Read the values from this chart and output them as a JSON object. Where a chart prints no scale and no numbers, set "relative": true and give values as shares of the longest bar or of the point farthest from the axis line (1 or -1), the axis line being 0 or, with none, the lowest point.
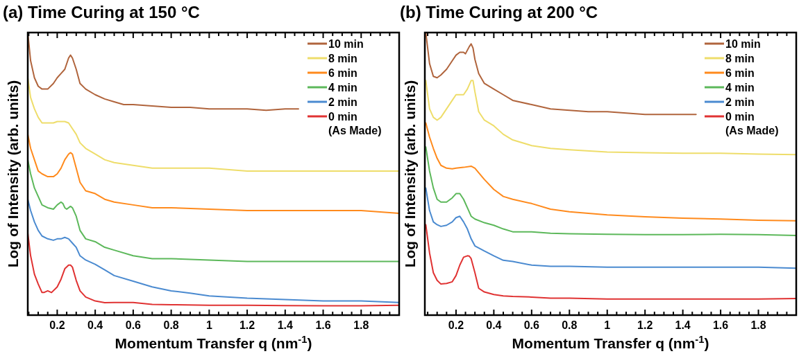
{
  "chart_data": [
    {
      "type": "line",
      "title": "(a)  Time Curing at 150 °C",
      "xlabel": "Momentum Transfer q (nm$^{-1}$)",
      "ylabel": "Log of Intensity (arb. units)",
      "relative": true,
      "legend": "top right",
      "grid": false,
      "line_style": "solid",
      "xlim": [
        0.045,
        2.0
      ],
      "xticks": [
        {
          "value": 0.05,
          "label": null
        },
        {
          "value": 0.1,
          "label": null
        },
        {
          "value": 0.15,
          "label": null
        },
        0.2,
        {
          "value": 0.25,
          "label": null
        },
        {
          "value": 0.3,
          "label": null
        },
        {
          "value": 0.35,
          "label": null
        },
        0.4,
        {
          "value": 0.45,
          "label": null
        },
        {
          "value": 0.5,
          "label": null
        },
        {
          "value": 0.55,
          "label": null
        },
        0.6,
        {
          "value": 0.65,
          "label": null
        },
        {
          "value": 0.7,
          "label": null
        },
        {
          "value": 0.75,
          "label": null
        },
        0.8,
        {
          "value": 0.85,
          "label": null
        },
        {
          "value": 0.9,
          "label": null
        },
        {
          "value": 0.95,
          "label": null
        },
        1,
        {
          "value": 1.05,
          "label": null
        },
        {
          "value": 1.1,
          "label": null
        },
        {
          "value": 1.15,
          "label": null
        },
        1.2,
        {
          "value": 1.25,
          "label": null
        },
        {
          "value": 1.3,
          "label": null
        },
        {
          "value": 1.35,
          "label": null
        },
        1.4,
        {
          "value": 1.45,
          "label": null
        },
        {
          "value": 1.5,
          "label": null
        },
        {
          "value": 1.55,
          "label": null
        },
        1.6,
        {
          "value": 1.65,
          "label": null
        },
        {
          "value": 1.7,
          "label": null
        },
        {
          "value": 1.75,
          "label": null
        },
        1.8,
        {
          "value": 1.85,
          "label": null
        },
        {
          "value": 1.9,
          "label": null
        },
        {
          "value": 1.95,
          "label": null
        }
      ],
      "series": [
        {
          "name": "10 min",
          "color": "#b0643c",
          "x": [
            0.045,
            0.06,
            0.08,
            0.1,
            0.12,
            0.15,
            0.18,
            0.2,
            0.22,
            0.24,
            0.26,
            0.27,
            0.28,
            0.3,
            0.32,
            0.35,
            0.4,
            0.45,
            0.5,
            0.55,
            0.6,
            0.7,
            0.8,
            0.9,
            1.0,
            1.1,
            1.2,
            1.3,
            1.4,
            1.47
          ],
          "values": [
            1.0,
            0.9,
            0.84,
            0.81,
            0.8,
            0.8,
            0.82,
            0.84,
            0.855,
            0.87,
            0.91,
            0.92,
            0.91,
            0.87,
            0.82,
            0.8,
            0.78,
            0.765,
            0.755,
            0.745,
            0.745,
            0.74,
            0.735,
            0.735,
            0.73,
            0.73,
            0.73,
            0.725,
            0.73,
            0.73
          ]
        },
        {
          "name": "8 min",
          "color": "#eedd6a",
          "x": [
            0.045,
            0.06,
            0.08,
            0.1,
            0.12,
            0.15,
            0.18,
            0.2,
            0.22,
            0.24,
            0.26,
            0.28,
            0.3,
            0.32,
            0.35,
            0.4,
            0.45,
            0.5,
            0.6,
            0.7,
            0.8,
            1.0,
            1.2,
            1.4,
            1.6,
            1.8,
            2.0
          ],
          "values": [
            0.84,
            0.77,
            0.73,
            0.7,
            0.68,
            0.68,
            0.68,
            0.685,
            0.685,
            0.685,
            0.68,
            0.66,
            0.64,
            0.61,
            0.59,
            0.57,
            0.55,
            0.54,
            0.53,
            0.52,
            0.52,
            0.52,
            0.51,
            0.51,
            0.51,
            0.51,
            0.51
          ]
        },
        {
          "name": "6 min",
          "color": "#ff8a1c",
          "x": [
            0.045,
            0.06,
            0.08,
            0.1,
            0.12,
            0.15,
            0.18,
            0.2,
            0.22,
            0.24,
            0.26,
            0.27,
            0.28,
            0.3,
            0.32,
            0.35,
            0.4,
            0.45,
            0.5,
            0.6,
            0.7,
            0.8,
            1.0,
            1.2,
            1.4,
            1.6,
            1.8,
            2.0
          ],
          "values": [
            0.64,
            0.59,
            0.55,
            0.51,
            0.5,
            0.49,
            0.49,
            0.5,
            0.52,
            0.55,
            0.57,
            0.575,
            0.57,
            0.52,
            0.47,
            0.44,
            0.43,
            0.41,
            0.4,
            0.39,
            0.38,
            0.38,
            0.375,
            0.37,
            0.37,
            0.37,
            0.37,
            0.36
          ]
        },
        {
          "name": "4 min",
          "color": "#5cb85a",
          "x": [
            0.045,
            0.06,
            0.08,
            0.1,
            0.12,
            0.15,
            0.18,
            0.2,
            0.22,
            0.23,
            0.24,
            0.25,
            0.27,
            0.28,
            0.3,
            0.32,
            0.35,
            0.4,
            0.45,
            0.5,
            0.6,
            0.7,
            0.8,
            1.0,
            1.2,
            1.4,
            1.6,
            1.8,
            2.0
          ],
          "values": [
            0.55,
            0.5,
            0.45,
            0.42,
            0.39,
            0.38,
            0.375,
            0.39,
            0.4,
            0.395,
            0.38,
            0.375,
            0.385,
            0.38,
            0.35,
            0.3,
            0.27,
            0.26,
            0.24,
            0.23,
            0.21,
            0.2,
            0.2,
            0.195,
            0.19,
            0.19,
            0.19,
            0.19,
            0.19
          ]
        },
        {
          "name": "2 min",
          "color": "#4a8ad0",
          "x": [
            0.045,
            0.06,
            0.08,
            0.1,
            0.12,
            0.15,
            0.18,
            0.2,
            0.22,
            0.24,
            0.26,
            0.28,
            0.3,
            0.32,
            0.35,
            0.4,
            0.45,
            0.5,
            0.6,
            0.7,
            0.8,
            0.9,
            1.0,
            1.2,
            1.4,
            1.6,
            1.8,
            2.0
          ],
          "values": [
            0.41,
            0.37,
            0.33,
            0.3,
            0.28,
            0.27,
            0.265,
            0.27,
            0.27,
            0.275,
            0.27,
            0.255,
            0.24,
            0.21,
            0.195,
            0.18,
            0.16,
            0.14,
            0.12,
            0.1,
            0.086,
            0.078,
            0.068,
            0.06,
            0.055,
            0.05,
            0.05,
            0.045
          ]
        },
        {
          "name": "0 min (As Made)",
          "color": "#e03232",
          "x": [
            0.045,
            0.06,
            0.08,
            0.1,
            0.12,
            0.13,
            0.15,
            0.17,
            0.2,
            0.22,
            0.24,
            0.26,
            0.27,
            0.28,
            0.3,
            0.32,
            0.35,
            0.4,
            0.45,
            0.5,
            0.6,
            0.7,
            0.8,
            1.0,
            1.2,
            1.4,
            1.6,
            1.8,
            2.0
          ],
          "values": [
            0.29,
            0.21,
            0.145,
            0.11,
            0.08,
            0.08,
            0.086,
            0.08,
            0.1,
            0.127,
            0.164,
            0.177,
            0.177,
            0.17,
            0.123,
            0.086,
            0.064,
            0.05,
            0.044,
            0.045,
            0.045,
            0.038,
            0.037,
            0.035,
            0.035,
            0.034,
            0.033,
            0.033,
            0.035
          ]
        }
      ]
    },
    {
      "type": "line",
      "title": "(b)  Time Curing at 200 °C",
      "xlabel": "Momentum Transfer q (nm$^{-1}$)",
      "ylabel": "Log of Intensity (arb. units)",
      "relative": true,
      "legend": "top right",
      "grid": false,
      "line_style": "solid",
      "xlim": [
        0.035,
        2.0
      ],
      "xticks": [
        {
          "value": 0.05,
          "label": null
        },
        {
          "value": 0.1,
          "label": null
        },
        {
          "value": 0.15,
          "label": null
        },
        0.2,
        {
          "value": 0.25,
          "label": null
        },
        {
          "value": 0.3,
          "label": null
        },
        {
          "value": 0.35,
          "label": null
        },
        0.4,
        {
          "value": 0.45,
          "label": null
        },
        {
          "value": 0.5,
          "label": null
        },
        {
          "value": 0.55,
          "label": null
        },
        0.6,
        {
          "value": 0.65,
          "label": null
        },
        {
          "value": 0.7,
          "label": null
        },
        {
          "value": 0.75,
          "label": null
        },
        0.8,
        {
          "value": 0.85,
          "label": null
        },
        {
          "value": 0.9,
          "label": null
        },
        {
          "value": 0.95,
          "label": null
        },
        1,
        {
          "value": 1.05,
          "label": null
        },
        {
          "value": 1.1,
          "label": null
        },
        {
          "value": 1.15,
          "label": null
        },
        1.2,
        {
          "value": 1.25,
          "label": null
        },
        {
          "value": 1.3,
          "label": null
        },
        {
          "value": 1.35,
          "label": null
        },
        1.4,
        {
          "value": 1.45,
          "label": null
        },
        {
          "value": 1.5,
          "label": null
        },
        {
          "value": 1.55,
          "label": null
        },
        1.6,
        {
          "value": 1.65,
          "label": null
        },
        {
          "value": 1.7,
          "label": null
        },
        {
          "value": 1.75,
          "label": null
        },
        1.8,
        {
          "value": 1.85,
          "label": null
        },
        {
          "value": 1.9,
          "label": null
        },
        {
          "value": 1.95,
          "label": null
        }
      ],
      "series": [
        {
          "name": "10 min",
          "color": "#b0643c",
          "x": [
            0.04,
            0.06,
            0.08,
            0.1,
            0.12,
            0.15,
            0.18,
            0.2,
            0.22,
            0.24,
            0.25,
            0.27,
            0.28,
            0.29,
            0.3,
            0.32,
            0.35,
            0.4,
            0.45,
            0.5,
            0.6,
            0.7,
            0.8,
            0.9,
            1.0,
            1.1,
            1.2,
            1.3,
            1.4,
            1.47
          ],
          "values": [
            1.0,
            0.89,
            0.845,
            0.84,
            0.85,
            0.87,
            0.9,
            0.92,
            0.93,
            0.93,
            0.925,
            0.95,
            0.96,
            0.945,
            0.905,
            0.855,
            0.82,
            0.8,
            0.78,
            0.76,
            0.745,
            0.73,
            0.725,
            0.72,
            0.72,
            0.715,
            0.71,
            0.71,
            0.71,
            0.71
          ]
        },
        {
          "name": "8 min",
          "color": "#eedd6a",
          "x": [
            0.04,
            0.06,
            0.08,
            0.1,
            0.12,
            0.15,
            0.18,
            0.2,
            0.22,
            0.24,
            0.26,
            0.28,
            0.29,
            0.3,
            0.32,
            0.35,
            0.4,
            0.45,
            0.5,
            0.6,
            0.7,
            0.8,
            1.0,
            1.2,
            1.4,
            1.6,
            1.8,
            2.0
          ],
          "values": [
            0.83,
            0.73,
            0.7,
            0.69,
            0.7,
            0.73,
            0.76,
            0.78,
            0.78,
            0.78,
            0.8,
            0.83,
            0.83,
            0.79,
            0.72,
            0.69,
            0.67,
            0.64,
            0.62,
            0.6,
            0.59,
            0.585,
            0.577,
            0.575,
            0.573,
            0.573,
            0.57,
            0.568
          ]
        },
        {
          "name": "6 min",
          "color": "#ff8a1c",
          "x": [
            0.04,
            0.06,
            0.08,
            0.1,
            0.12,
            0.15,
            0.18,
            0.2,
            0.24,
            0.28,
            0.3,
            0.35,
            0.4,
            0.45,
            0.5,
            0.6,
            0.7,
            0.8,
            0.9,
            1.0,
            1.2,
            1.4,
            1.6,
            1.8,
            2.0
          ],
          "values": [
            0.68,
            0.63,
            0.59,
            0.555,
            0.53,
            0.52,
            0.518,
            0.52,
            0.523,
            0.527,
            0.52,
            0.48,
            0.445,
            0.42,
            0.41,
            0.395,
            0.375,
            0.366,
            0.36,
            0.355,
            0.348,
            0.343,
            0.34,
            0.336,
            0.334
          ]
        },
        {
          "name": "4 min",
          "color": "#5cb85a",
          "x": [
            0.04,
            0.06,
            0.08,
            0.1,
            0.12,
            0.15,
            0.18,
            0.2,
            0.22,
            0.24,
            0.26,
            0.28,
            0.3,
            0.35,
            0.4,
            0.45,
            0.5,
            0.6,
            0.7,
            0.8,
            1.0,
            1.2,
            1.4,
            1.6,
            1.8,
            2.0
          ],
          "values": [
            0.595,
            0.51,
            0.45,
            0.41,
            0.4,
            0.4,
            0.415,
            0.43,
            0.43,
            0.41,
            0.38,
            0.35,
            0.34,
            0.327,
            0.318,
            0.305,
            0.295,
            0.295,
            0.29,
            0.288,
            0.286,
            0.285,
            0.285,
            0.286,
            0.285,
            0.282
          ]
        },
        {
          "name": "2 min",
          "color": "#4a8ad0",
          "x": [
            0.04,
            0.06,
            0.08,
            0.1,
            0.12,
            0.15,
            0.18,
            0.2,
            0.22,
            0.24,
            0.26,
            0.28,
            0.3,
            0.35,
            0.4,
            0.45,
            0.5,
            0.6,
            0.7,
            0.8,
            1.0,
            1.2,
            1.4,
            1.6,
            1.8,
            2.0
          ],
          "values": [
            0.45,
            0.37,
            0.33,
            0.32,
            0.314,
            0.318,
            0.33,
            0.345,
            0.35,
            0.33,
            0.305,
            0.27,
            0.245,
            0.227,
            0.21,
            0.194,
            0.19,
            0.177,
            0.173,
            0.173,
            0.17,
            0.17,
            0.17,
            0.17,
            0.17,
            0.166
          ]
        },
        {
          "name": "0 min (As Made)",
          "color": "#e03232",
          "x": [
            0.04,
            0.06,
            0.08,
            0.1,
            0.12,
            0.15,
            0.18,
            0.2,
            0.22,
            0.24,
            0.26,
            0.27,
            0.28,
            0.3,
            0.32,
            0.35,
            0.4,
            0.45,
            0.5,
            0.6,
            0.7,
            0.8,
            1.0,
            1.2,
            1.4,
            1.6,
            1.8,
            2.0
          ],
          "values": [
            0.32,
            0.22,
            0.15,
            0.123,
            0.11,
            0.112,
            0.118,
            0.14,
            0.177,
            0.205,
            0.21,
            0.209,
            0.2,
            0.15,
            0.095,
            0.082,
            0.073,
            0.068,
            0.066,
            0.064,
            0.06,
            0.06,
            0.057,
            0.057,
            0.057,
            0.057,
            0.057,
            0.059
          ]
        }
      ]
    }
  ]
}
